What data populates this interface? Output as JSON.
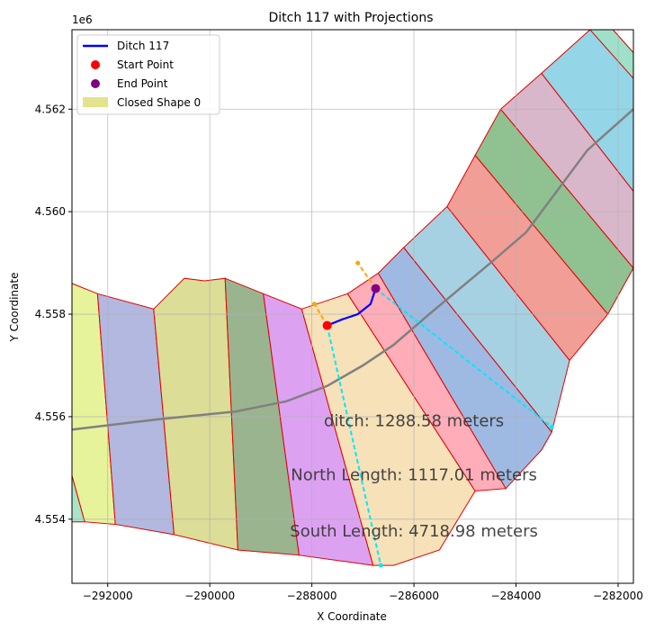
{
  "chart_data": {
    "type": "line",
    "title": "Ditch 117 with Projections",
    "xlabel": "X Coordinate",
    "ylabel": "Y Coordinate",
    "y_offset_label": "1e6",
    "xlim": [
      -292700,
      -281700
    ],
    "ylim": [
      4.55275,
      4.56355
    ],
    "xticks": [
      -292000,
      -290000,
      -288000,
      -286000,
      -284000,
      -282000
    ],
    "xtick_labels": [
      "−292000",
      "−290000",
      "−288000",
      "−286000",
      "−284000",
      "−282000"
    ],
    "yticks": [
      4.554,
      4.556,
      4.558,
      4.56,
      4.562
    ],
    "ytick_labels": [
      "4.554",
      "4.556",
      "4.558",
      "4.560",
      "4.562"
    ],
    "grid": true,
    "legend_placement": "top-left",
    "legend": [
      {
        "label": "Ditch 117",
        "kind": "line",
        "color": "#0000ff"
      },
      {
        "label": "Start Point",
        "kind": "dot",
        "color": "#ff0000"
      },
      {
        "label": "End Point",
        "kind": "dot",
        "color": "#800080"
      },
      {
        "label": "Closed Shape 0",
        "kind": "patch",
        "color": "#e0e080"
      }
    ],
    "annotations": [
      {
        "text": "ditch: 1288.58 meters",
        "x": -286000,
        "y": 4.5559
      },
      {
        "text": "North Length: 1117.01 meters",
        "x": -286000,
        "y": 4.55485
      },
      {
        "text": "South Length: 4718.98 meters",
        "x": -286000,
        "y": 4.55375
      }
    ],
    "polygons": [
      {
        "color": "#9de2c0",
        "points": [
          [
            -292700,
            4.55485
          ],
          [
            -292700,
            4.55395
          ],
          [
            -292450,
            4.55395
          ]
        ]
      },
      {
        "color": "#e4f290",
        "points": [
          [
            -292700,
            4.5586
          ],
          [
            -292200,
            4.5584
          ],
          [
            -291850,
            4.5539
          ],
          [
            -292450,
            4.55395
          ],
          [
            -292700,
            4.55485
          ]
        ]
      },
      {
        "color": "#aab0dc",
        "points": [
          [
            -292200,
            4.5584
          ],
          [
            -291100,
            4.5581
          ],
          [
            -290700,
            4.5537
          ],
          [
            -291850,
            4.5539
          ]
        ]
      },
      {
        "color": "#d8d98c",
        "points": [
          [
            -291100,
            4.5581
          ],
          [
            -290500,
            4.5587
          ],
          [
            -290100,
            4.55865
          ],
          [
            -289700,
            4.5587
          ],
          [
            -289450,
            4.5534
          ],
          [
            -290700,
            4.5537
          ]
        ]
      },
      {
        "color": "#8fac84",
        "points": [
          [
            -289700,
            4.5587
          ],
          [
            -288950,
            4.5584
          ],
          [
            -288250,
            4.5533
          ],
          [
            -289450,
            4.5534
          ]
        ]
      },
      {
        "color": "#d898f0",
        "points": [
          [
            -288950,
            4.5584
          ],
          [
            -288200,
            4.5581
          ],
          [
            -286800,
            4.5531
          ],
          [
            -288250,
            4.5533
          ]
        ]
      },
      {
        "color": "#f5deb0",
        "points": [
          [
            -288200,
            4.5581
          ],
          [
            -287300,
            4.5584
          ],
          [
            -284800,
            4.55455
          ],
          [
            -285500,
            4.5534
          ],
          [
            -286400,
            4.5531
          ],
          [
            -286800,
            4.5531
          ]
        ]
      },
      {
        "color": "#ffa4b0",
        "points": [
          [
            -287300,
            4.5584
          ],
          [
            -286700,
            4.5588
          ],
          [
            -284200,
            4.5546
          ],
          [
            -284800,
            4.55455
          ]
        ]
      },
      {
        "color": "#94b2e0",
        "points": [
          [
            -286700,
            4.5588
          ],
          [
            -286200,
            4.5593
          ],
          [
            -283300,
            4.5557
          ],
          [
            -283500,
            4.55535
          ],
          [
            -284200,
            4.5546
          ]
        ]
      },
      {
        "color": "#9ccce0",
        "points": [
          [
            -286200,
            4.5593
          ],
          [
            -285350,
            4.5601
          ],
          [
            -282950,
            4.5571
          ],
          [
            -283300,
            4.5557
          ]
        ]
      },
      {
        "color": "#f0948c",
        "points": [
          [
            -285350,
            4.5601
          ],
          [
            -284800,
            4.5611
          ],
          [
            -282200,
            4.558
          ],
          [
            -282950,
            4.5571
          ]
        ]
      },
      {
        "color": "#84ba84",
        "points": [
          [
            -284800,
            4.5611
          ],
          [
            -284300,
            4.562
          ],
          [
            -281700,
            4.5589
          ],
          [
            -282200,
            4.558
          ]
        ]
      },
      {
        "color": "#d4afc4",
        "points": [
          [
            -284300,
            4.562
          ],
          [
            -283500,
            4.5627
          ],
          [
            -281700,
            4.5604
          ],
          [
            -281700,
            4.5589
          ]
        ]
      },
      {
        "color": "#88d0e4",
        "points": [
          [
            -283500,
            4.5627
          ],
          [
            -282550,
            4.56355
          ],
          [
            -282100,
            4.56355
          ],
          [
            -281700,
            4.5631
          ],
          [
            -281700,
            4.5604
          ]
        ]
      },
      {
        "color": "#9ee2c4",
        "points": [
          [
            -282550,
            4.56355
          ],
          [
            -282100,
            4.56355
          ],
          [
            -281700,
            4.5631
          ],
          [
            -281700,
            4.5626
          ]
        ]
      }
    ],
    "centerline": [
      [
        -292700,
        4.55575
      ],
      [
        -291000,
        4.55595
      ],
      [
        -289500,
        4.5561
      ],
      [
        -288500,
        4.5563
      ],
      [
        -287700,
        4.5566
      ],
      [
        -287000,
        4.557
      ],
      [
        -286400,
        4.5574
      ],
      [
        -285700,
        4.558
      ],
      [
        -285100,
        4.5585
      ],
      [
        -284500,
        4.559
      ],
      [
        -283800,
        4.5596
      ],
      [
        -283200,
        4.5604
      ],
      [
        -282600,
        4.5612
      ],
      [
        -281700,
        4.562
      ]
    ],
    "series": [
      {
        "name": "Ditch 117",
        "color": "#0000ff",
        "points": [
          [
            -287700,
            4.55778
          ],
          [
            -287400,
            4.5579
          ],
          [
            -287100,
            4.558
          ],
          [
            -286850,
            4.5582
          ],
          [
            -286750,
            4.5585
          ]
        ]
      }
    ],
    "projections": [
      {
        "color": "#ffa500",
        "points": [
          [
            -287700,
            4.55778
          ],
          [
            -287950,
            4.5582
          ]
        ]
      },
      {
        "color": "#ffa500",
        "points": [
          [
            -286750,
            4.5585
          ],
          [
            -287100,
            4.559
          ]
        ]
      },
      {
        "color": "#00e8ff",
        "points": [
          [
            -287700,
            4.55778
          ],
          [
            -286650,
            4.5531
          ]
        ]
      },
      {
        "color": "#00e8ff",
        "points": [
          [
            -286750,
            4.5585
          ],
          [
            -283300,
            4.5558
          ]
        ]
      }
    ],
    "start_point": [
      -287700,
      4.55778
    ],
    "end_point": [
      -286750,
      4.5585
    ]
  }
}
